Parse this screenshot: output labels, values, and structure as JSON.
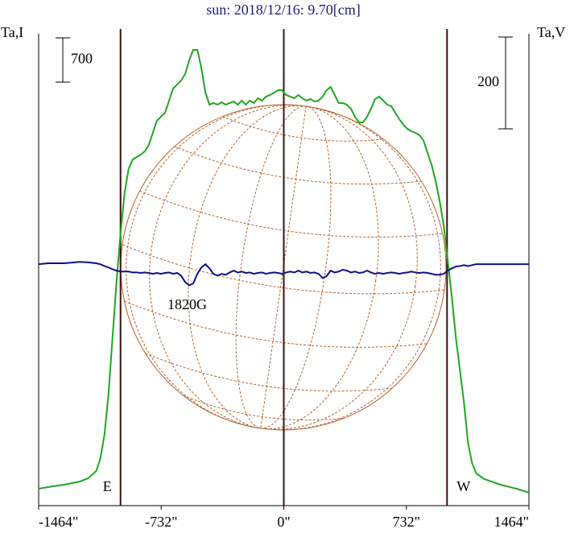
{
  "chart_data": {
    "type": "line",
    "title": "sun: 2018/12/16: 9.70[cm]",
    "xlim": [
      -1464,
      1464
    ],
    "xticks": [
      {
        "value": -1464,
        "label": "-1464\""
      },
      {
        "value": -732,
        "label": "-732\""
      },
      {
        "value": 0,
        "label": "0\""
      },
      {
        "value": 732,
        "label": "732\""
      },
      {
        "value": 1464,
        "label": "1464\""
      }
    ],
    "ylim": [
      0,
      7458
    ],
    "y2lim": [
      -526,
      502
    ],
    "scale_bars": [
      {
        "value": 700,
        "axis": "y"
      },
      {
        "value": 200,
        "axis": "y2"
      }
    ],
    "vertical_lines": [
      {
        "x": -975,
        "label": "E"
      },
      {
        "x": 0
      },
      {
        "x": 975,
        "label": "W"
      }
    ],
    "annotations": [
      "1820G"
    ],
    "x": [
      -1464,
      -1409,
      -1313,
      -1216,
      -1168,
      -1120,
      -1096,
      -1071,
      -1047,
      -1023,
      -999,
      -975,
      -951,
      -927,
      -902,
      -878,
      -854,
      -830,
      -806,
      -782,
      -758,
      -734,
      -709,
      -685,
      -661,
      -637,
      -613,
      -589,
      -565,
      -541,
      -516,
      -492,
      -468,
      -444,
      -420,
      -396,
      -372,
      -347,
      -323,
      -299,
      -275,
      -251,
      -227,
      -203,
      -179,
      -154,
      -130,
      -106,
      -82,
      -58,
      -34,
      -10,
      14,
      39,
      63,
      87,
      111,
      135,
      159,
      183,
      208,
      232,
      256,
      280,
      304,
      328,
      352,
      376,
      401,
      425,
      449,
      473,
      497,
      521,
      545,
      569,
      594,
      618,
      642,
      666,
      690,
      714,
      738,
      762,
      787,
      811,
      835,
      859,
      883,
      907,
      931,
      955,
      980,
      1004,
      1028,
      1052,
      1076,
      1100,
      1124,
      1149,
      1197,
      1293,
      1390,
      1464
    ],
    "series": [
      {
        "name": "Ta,I",
        "color": "#1fa81f",
        "values": [
          267,
          293,
          331,
          382,
          433,
          547,
          738,
          1120,
          1756,
          2647,
          3538,
          4302,
          4938,
          5320,
          5473,
          5511,
          5549,
          5600,
          5702,
          5893,
          6084,
          6147,
          6211,
          6402,
          6593,
          6656,
          6720,
          6822,
          7038,
          7204,
          7204,
          6911,
          6529,
          6338,
          6364,
          6338,
          6376,
          6338,
          6364,
          6389,
          6338,
          6402,
          6338,
          6402,
          6364,
          6440,
          6402,
          6465,
          6491,
          6529,
          6567,
          6567,
          6491,
          6465,
          6440,
          6491,
          6440,
          6402,
          6427,
          6389,
          6402,
          6465,
          6567,
          6618,
          6491,
          6364,
          6364,
          6338,
          6274,
          6147,
          6058,
          6058,
          6147,
          6274,
          6427,
          6465,
          6402,
          6338,
          6313,
          6211,
          6109,
          6020,
          5956,
          5918,
          5893,
          5854,
          5765,
          5574,
          5384,
          5129,
          4811,
          4429,
          3856,
          3284,
          2647,
          2138,
          1629,
          993,
          675,
          509,
          420,
          331,
          267,
          204
        ]
      },
      {
        "name": "Ta,V",
        "color": "#10108a",
        "axis": "y2",
        "values": [
          0,
          2,
          2,
          5,
          4,
          2,
          0,
          -4,
          -7,
          -11,
          -14,
          -16,
          -16,
          -16,
          -18,
          -18,
          -19,
          -18,
          -19,
          -21,
          -19,
          -21,
          -19,
          -18,
          -21,
          -19,
          -25,
          -39,
          -46,
          -42,
          -21,
          -7,
          0,
          -9,
          -21,
          -25,
          -21,
          -23,
          -18,
          -14,
          -18,
          -16,
          -19,
          -18,
          -21,
          -19,
          -18,
          -21,
          -19,
          -18,
          -19,
          -21,
          -18,
          -16,
          -18,
          -14,
          -18,
          -16,
          -19,
          -18,
          -21,
          -30,
          -26,
          -14,
          -18,
          -16,
          -12,
          -14,
          -18,
          -16,
          -19,
          -18,
          -14,
          -18,
          -21,
          -19,
          -21,
          -19,
          -18,
          -19,
          -21,
          -19,
          -18,
          -16,
          -18,
          -19,
          -18,
          -19,
          -21,
          -23,
          -23,
          -21,
          -14,
          -9,
          -5,
          -4,
          -2,
          -4,
          -2,
          0,
          0,
          0,
          0,
          0
        ]
      }
    ]
  }
}
